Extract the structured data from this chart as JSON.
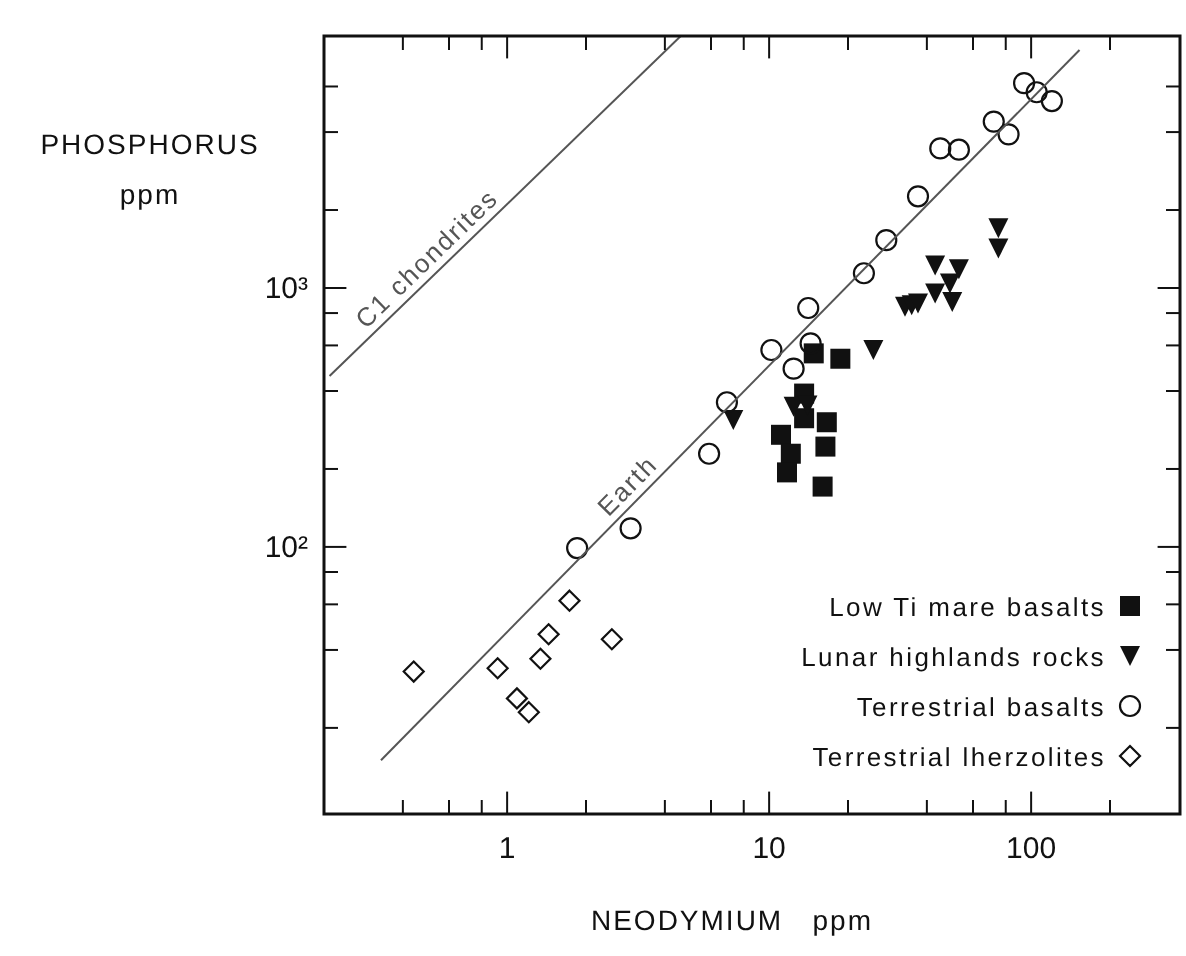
{
  "chart_data": {
    "type": "scatter",
    "xlabel": "NEODYMIUM   ppm",
    "ylabel": "PHOSPHORUS\nppm",
    "log": "xy",
    "grid": false,
    "legend": "bottom right",
    "xlim": [
      0.2,
      370
    ],
    "ylim": [
      9.3,
      9400
    ],
    "xticks": [
      {
        "value": 0.4,
        "label": null
      },
      {
        "value": 0.6,
        "label": null
      },
      {
        "value": 0.8,
        "label": null
      },
      1,
      {
        "value": 2,
        "label": null
      },
      {
        "value": 4,
        "label": null
      },
      {
        "value": 6,
        "label": null
      },
      {
        "value": 8,
        "label": null
      },
      10,
      {
        "value": 20,
        "label": null
      },
      {
        "value": 40,
        "label": null
      },
      {
        "value": 60,
        "label": null
      },
      {
        "value": 80,
        "label": null
      },
      100,
      {
        "value": 200,
        "label": null
      }
    ],
    "yticks": [
      {
        "value": 20,
        "label": null
      },
      {
        "value": 40,
        "label": null
      },
      {
        "value": 60,
        "label": null
      },
      {
        "value": 80,
        "label": null
      },
      {
        "value": 100,
        "label": "10²"
      },
      {
        "value": 200,
        "label": null
      },
      {
        "value": 400,
        "label": null
      },
      {
        "value": 600,
        "label": null
      },
      {
        "value": 800,
        "label": null
      },
      {
        "value": 1000,
        "label": "10³"
      },
      {
        "value": 2000,
        "label": null
      },
      {
        "value": 4000,
        "label": null
      },
      {
        "value": 6000,
        "label": null
      }
    ],
    "series": [
      {
        "name": "Low Ti mare basalts",
        "color": "#111111",
        "marker": "square",
        "x": [
          14.8,
          18.7,
          13.6,
          13.6,
          16.6,
          11.1,
          12.1,
          11.7,
          16.4,
          16.0
        ],
        "values": [
          559,
          533,
          391,
          314,
          303,
          271,
          229,
          194,
          244,
          171
        ]
      },
      {
        "name": "Lunar highlands rocks",
        "color": "#111111",
        "marker": "triangle",
        "x": [
          75,
          75,
          43,
          53,
          49,
          43,
          50,
          33,
          35,
          37,
          25,
          7.3,
          12.4,
          14.0
        ],
        "values": [
          1700,
          1420,
          1220,
          1180,
          1040,
          952,
          883,
          847,
          857,
          872,
          576,
          309,
          348,
          352
        ]
      },
      {
        "name": "Terrestrial basalts",
        "color": "#111111",
        "marker": "circle",
        "x": [
          94,
          105,
          120,
          72,
          82,
          45,
          53,
          37,
          28,
          23,
          14.1,
          14.4,
          10.2,
          12.4,
          6.9,
          5.9,
          2.96,
          1.85
        ],
        "values": [
          6180,
          5700,
          5270,
          4390,
          3920,
          3460,
          3420,
          2260,
          1530,
          1140,
          837,
          611,
          576,
          488,
          362,
          229,
          118,
          99
        ]
      },
      {
        "name": "Terrestrial lherzolites",
        "color": "#111111",
        "marker": "diamond",
        "x": [
          0.44,
          0.92,
          1.09,
          1.21,
          1.34,
          1.44,
          1.73,
          2.51
        ],
        "values": [
          33,
          34,
          26,
          23,
          37,
          46,
          62,
          44
        ]
      },
      {
        "name": "Earth",
        "type": "line",
        "color": "#555555",
        "x": [
          0.33,
          153
        ],
        "values": [
          15,
          8300
        ]
      },
      {
        "name": "C1 chondrites",
        "type": "line",
        "color": "#555555",
        "x": [
          0.21,
          4.6
        ],
        "values": [
          457,
          9400
        ]
      }
    ]
  }
}
